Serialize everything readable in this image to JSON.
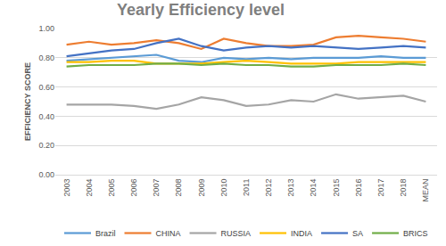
{
  "chart_data": {
    "type": "line",
    "title": "Yearly Efficiency level",
    "y_label": "EFFICIENCY SCORE",
    "categories": [
      "2003",
      "2004",
      "2005",
      "2006",
      "2007",
      "2008",
      "2009",
      "2010",
      "2011",
      "2012",
      "2013",
      "2014",
      "2015",
      "2016",
      "2017",
      "2018",
      "MEAN"
    ],
    "series": [
      {
        "name": "Brazil",
        "color": "#5b9bd5",
        "values": [
          0.78,
          0.79,
          0.8,
          0.81,
          0.82,
          0.78,
          0.77,
          0.8,
          0.79,
          0.8,
          0.79,
          0.8,
          0.8,
          0.8,
          0.81,
          0.8,
          0.8
        ]
      },
      {
        "name": "CHINA",
        "color": "#ed7d31",
        "values": [
          0.89,
          0.91,
          0.89,
          0.9,
          0.92,
          0.9,
          0.86,
          0.93,
          0.9,
          0.88,
          0.88,
          0.89,
          0.94,
          0.95,
          0.94,
          0.93,
          0.91
        ]
      },
      {
        "name": "RUSSIA",
        "color": "#a5a5a5",
        "values": [
          0.48,
          0.48,
          0.48,
          0.47,
          0.45,
          0.48,
          0.53,
          0.51,
          0.47,
          0.48,
          0.51,
          0.5,
          0.55,
          0.52,
          0.53,
          0.54,
          0.5
        ]
      },
      {
        "name": "INDIA",
        "color": "#ffc000",
        "values": [
          0.77,
          0.77,
          0.78,
          0.78,
          0.76,
          0.76,
          0.76,
          0.77,
          0.78,
          0.77,
          0.76,
          0.76,
          0.76,
          0.77,
          0.77,
          0.77,
          0.77
        ]
      },
      {
        "name": "SA",
        "color": "#4472c4",
        "values": [
          0.81,
          0.83,
          0.85,
          0.86,
          0.9,
          0.93,
          0.88,
          0.85,
          0.87,
          0.88,
          0.87,
          0.88,
          0.87,
          0.86,
          0.87,
          0.88,
          0.87
        ]
      },
      {
        "name": "BRICS",
        "color": "#70ad47",
        "values": [
          0.74,
          0.75,
          0.75,
          0.75,
          0.76,
          0.76,
          0.75,
          0.76,
          0.75,
          0.75,
          0.74,
          0.74,
          0.75,
          0.75,
          0.75,
          0.76,
          0.75
        ]
      }
    ],
    "ylim": [
      0,
      1
    ],
    "yticks": [
      {
        "value": 0,
        "label": "0.00"
      },
      {
        "value": 0.2,
        "label": "0.20"
      },
      {
        "value": 0.4,
        "label": "0.40"
      },
      {
        "value": 0.6,
        "label": "0.60"
      },
      {
        "value": 0.8,
        "label": "0.80"
      },
      {
        "value": 1,
        "label": "1.00"
      }
    ],
    "grid": true,
    "legend": "bottom"
  }
}
